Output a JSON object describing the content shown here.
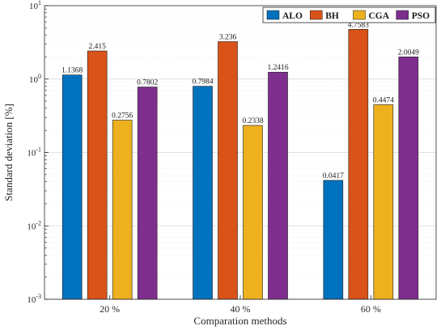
{
  "chart_data": {
    "type": "bar",
    "title": "",
    "xlabel": "Comparation methods",
    "ylabel": "Standard deviation [%]",
    "yscale": "log",
    "ylim": [
      0.001,
      10
    ],
    "yticks": [
      {
        "value": 0.001,
        "base": "10",
        "exp": "-3"
      },
      {
        "value": 0.01,
        "base": "10",
        "exp": "-2"
      },
      {
        "value": 0.1,
        "base": "10",
        "exp": "-1"
      },
      {
        "value": 1,
        "base": "10",
        "exp": "0"
      },
      {
        "value": 10,
        "base": "10",
        "exp": "1"
      }
    ],
    "categories": [
      "20 %",
      "40 %",
      "60 %"
    ],
    "grid": true,
    "legend_position": "top-right",
    "series": [
      {
        "name": "ALO",
        "color": "#0072BD",
        "values": [
          1.1368,
          0.7984,
          0.0417
        ],
        "labels": [
          "1.1368",
          "0.7984",
          "0.0417"
        ]
      },
      {
        "name": "BH",
        "color": "#D95319",
        "values": [
          2.415,
          3.236,
          4.7583
        ],
        "labels": [
          "2.415",
          "3.236",
          "4.7583"
        ]
      },
      {
        "name": "CGA",
        "color": "#EDB120",
        "values": [
          0.2756,
          0.2338,
          0.4474
        ],
        "labels": [
          "0.2756",
          "0.2338",
          "0.4474"
        ]
      },
      {
        "name": "PSO",
        "color": "#7E2F8E",
        "values": [
          0.7802,
          1.2416,
          2.0049
        ],
        "labels": [
          "0.7802",
          "1.2416",
          "2.0049"
        ]
      }
    ]
  }
}
